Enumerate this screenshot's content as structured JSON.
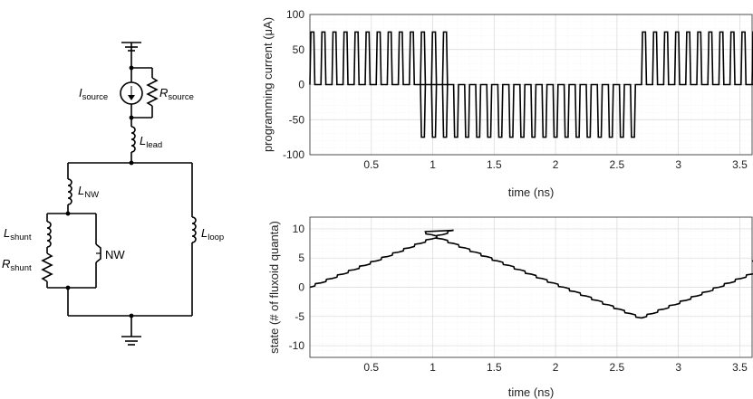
{
  "circuit": {
    "labels": {
      "i_source": {
        "main": "I",
        "sub": "source"
      },
      "r_source": {
        "main": "R",
        "sub": "source"
      },
      "l_lead": {
        "main": "L",
        "sub": "lead"
      },
      "l_nw": {
        "main": "L",
        "sub": "NW"
      },
      "l_shunt": {
        "main": "L",
        "sub": "shunt"
      },
      "r_shunt": {
        "main": "R",
        "sub": "shunt"
      },
      "nw": {
        "main": "NW"
      },
      "l_loop": {
        "main": "L",
        "sub": "loop"
      }
    }
  },
  "chart_data": [
    {
      "type": "line",
      "xlabel": "time (ns)",
      "ylabel": "programming current (μA)",
      "xlim": [
        0,
        3.6
      ],
      "ylim": [
        -100,
        100
      ],
      "xticks": [
        "0.5",
        "1",
        "1.5",
        "2",
        "2.5",
        "3",
        "3.5"
      ],
      "xtick_values": [
        0.5,
        1,
        1.5,
        2,
        2.5,
        3,
        3.5
      ],
      "yticks": [
        "-100",
        "-50",
        "0",
        "50",
        "100"
      ],
      "ytick_values": [
        -100,
        -50,
        0,
        50,
        100
      ],
      "grid": true,
      "series": [
        {
          "pulse_period_ns": 0.09,
          "pulse_amplitude": 75,
          "segments": [
            {
              "start_ns": 0.0,
              "count": 13,
              "sign": 1
            },
            {
              "start_ns": 0.9,
              "count": 20,
              "sign": -1
            },
            {
              "start_ns": 2.7,
              "count": 13,
              "sign": 1
            }
          ]
        }
      ]
    },
    {
      "type": "line",
      "xlabel": "time (ns)",
      "ylabel": "state (# of fluxoid quanta)",
      "xlim": [
        0,
        3.6
      ],
      "ylim": [
        -12,
        12
      ],
      "xticks": [
        "0.5",
        "1",
        "1.5",
        "2",
        "2.5",
        "3",
        "3.5"
      ],
      "xtick_values": [
        0.5,
        1,
        1.5,
        2,
        2.5,
        3,
        3.5
      ],
      "yticks": [
        "-10",
        "-5",
        "0",
        "5",
        "10"
      ],
      "ytick_values": [
        -10,
        -5,
        0,
        5,
        10
      ],
      "grid": true,
      "series": [
        {
          "start_value": 0,
          "step_per_pulse": 0.75,
          "pulse_period_ns": 0.09,
          "segments": [
            {
              "start_ns": 0.0,
              "count": 13,
              "sign": 1
            },
            {
              "start_ns": 0.9,
              "count": 20,
              "sign": -1
            },
            {
              "start_ns": 2.7,
              "count": 13,
              "sign": 1
            }
          ]
        }
      ]
    }
  ]
}
